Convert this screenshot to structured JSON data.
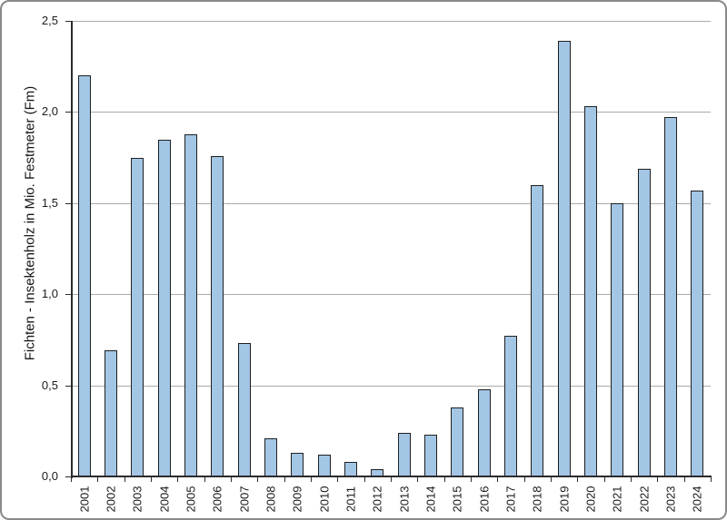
{
  "figure": {
    "background": "#ffffff",
    "border_color": "#898989"
  },
  "chart_data": {
    "type": "bar",
    "title": "",
    "xlabel": "",
    "ylabel": "Fichten - Insektenholz in Mio. Festmeter (Fm)",
    "categories": [
      "2001",
      "2002",
      "2003",
      "2004",
      "2005",
      "2006",
      "2007",
      "2008",
      "2009",
      "2010",
      "2011",
      "2012",
      "2013",
      "2014",
      "2015",
      "2016",
      "2017",
      "2018",
      "2019",
      "2020",
      "2021",
      "2022",
      "2023",
      "2024"
    ],
    "values": [
      2.2,
      0.69,
      1.75,
      1.85,
      1.88,
      1.76,
      0.73,
      0.21,
      0.13,
      0.12,
      0.08,
      0.04,
      0.24,
      0.23,
      0.38,
      0.48,
      0.77,
      1.6,
      2.39,
      2.03,
      1.5,
      1.69,
      1.97,
      1.57
    ],
    "ylim": [
      0,
      2.5
    ],
    "y_tick_step": 0.5,
    "y_tick_labels": [
      "0,0",
      "0,5",
      "1,0",
      "1,5",
      "2,0",
      "2,5"
    ],
    "decimal_separator": ",",
    "grid": "horizontal",
    "legend": "none",
    "colors": {
      "bar_fill": "#a3c6e5",
      "bar_border": "#1f1f1f",
      "gridline": "#ababab",
      "axis_line": "#2b2b2b",
      "label_text": "#1a1a1a"
    }
  }
}
